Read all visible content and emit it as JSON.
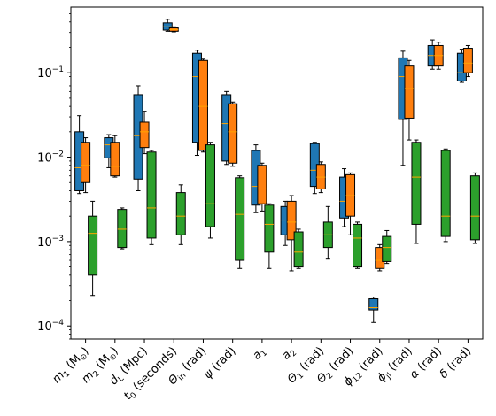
{
  "chart_data": {
    "type": "box",
    "yscale": "log",
    "ylim": [
      7e-05,
      0.6
    ],
    "y_ticks": [
      {
        "value": 0.0001,
        "label": "10^-4"
      },
      {
        "value": 0.001,
        "label": "10^-3"
      },
      {
        "value": 0.01,
        "label": "10^-2"
      },
      {
        "value": 0.1,
        "label": "10^-1"
      }
    ],
    "categories": [
      {
        "label": "m_1 (M_⊙)",
        "base": "m",
        "sub": "1",
        "rest": " (M",
        "tail": ")",
        "sun": true
      },
      {
        "label": "m_2 (M_⊙)",
        "base": "m",
        "sub": "2",
        "rest": " (M",
        "tail": ")",
        "sun": true
      },
      {
        "label": "d_L (Mpc)",
        "base": "d",
        "sub": "L",
        "rest": " (Mpc)"
      },
      {
        "label": "t_0 (seconds)",
        "base": "t",
        "sub": "0",
        "rest": " (seconds)"
      },
      {
        "label": "Θ_jn (rad)",
        "base": "Θ",
        "sub": "jn",
        "rest": " (rad)"
      },
      {
        "label": "ψ (rad)",
        "base": "ψ",
        "sub": "",
        "rest": " (rad)"
      },
      {
        "label": "a_1",
        "base": "a",
        "sub": "1",
        "rest": ""
      },
      {
        "label": "a_2",
        "base": "a",
        "sub": "2",
        "rest": ""
      },
      {
        "label": "Θ_1 (rad)",
        "base": "Θ",
        "sub": "1",
        "rest": " (rad)"
      },
      {
        "label": "Θ_2 (rad)",
        "base": "Θ",
        "sub": "2",
        "rest": " (rad)"
      },
      {
        "label": "ϕ_12 (rad)",
        "base": "ϕ",
        "sub": "12",
        "rest": " (rad)"
      },
      {
        "label": "ϕ_jl (rad)",
        "base": "ϕ",
        "sub": "jl",
        "rest": " (rad)"
      },
      {
        "label": "α (rad)",
        "base": "α",
        "sub": "",
        "rest": " (rad)"
      },
      {
        "label": "δ (rad)",
        "base": "δ",
        "sub": "",
        "rest": " (rad)"
      }
    ],
    "series": [
      {
        "color": "#1f77b4",
        "boxes": [
          {
            "category": 0,
            "whislo": 0.0037,
            "q1": 0.004,
            "med": 0.0075,
            "q3": 0.02,
            "whishi": 0.031
          },
          {
            "category": 1,
            "whislo": 0.0075,
            "q1": 0.0098,
            "med": 0.014,
            "q3": 0.017,
            "whishi": 0.0185
          },
          {
            "category": 2,
            "whislo": 0.004,
            "q1": 0.0055,
            "med": 0.018,
            "q3": 0.055,
            "whishi": 0.07
          },
          {
            "category": 3,
            "whislo": 0.31,
            "q1": 0.32,
            "med": 0.35,
            "q3": 0.39,
            "whishi": 0.43
          },
          {
            "category": 4,
            "whislo": 0.0105,
            "q1": 0.015,
            "med": 0.09,
            "q3": 0.17,
            "whishi": 0.185
          },
          {
            "category": 5,
            "whislo": 0.0082,
            "q1": 0.009,
            "med": 0.025,
            "q3": 0.055,
            "whishi": 0.06
          },
          {
            "category": 6,
            "whislo": 0.0022,
            "q1": 0.0027,
            "med": 0.0045,
            "q3": 0.012,
            "whishi": 0.014
          },
          {
            "category": 7,
            "whislo": 0.0009,
            "q1": 0.0012,
            "med": 0.0018,
            "q3": 0.0026,
            "whishi": 0.003
          },
          {
            "category": 8,
            "whislo": 0.0037,
            "q1": 0.0045,
            "med": 0.007,
            "q3": 0.0145,
            "whishi": 0.015
          },
          {
            "category": 9,
            "whislo": 0.0015,
            "q1": 0.0019,
            "med": 0.003,
            "q3": 0.0058,
            "whishi": 0.0073
          },
          {
            "category": 10,
            "whislo": 0.00011,
            "q1": 0.000155,
            "med": 0.000165,
            "q3": 0.00021,
            "whishi": 0.00022
          },
          {
            "category": 11,
            "whislo": 0.008,
            "q1": 0.028,
            "med": 0.09,
            "q3": 0.15,
            "whishi": 0.18
          },
          {
            "category": 12,
            "whislo": 0.11,
            "q1": 0.12,
            "med": 0.16,
            "q3": 0.21,
            "whishi": 0.245
          },
          {
            "category": 13,
            "whislo": 0.077,
            "q1": 0.08,
            "med": 0.1,
            "q3": 0.17,
            "whishi": 0.19
          }
        ]
      },
      {
        "color": "#ff7f0e",
        "boxes": [
          {
            "category": 0,
            "whislo": 0.0038,
            "q1": 0.005,
            "med": 0.008,
            "q3": 0.015,
            "whishi": 0.017
          },
          {
            "category": 1,
            "whislo": 0.0058,
            "q1": 0.006,
            "med": 0.0078,
            "q3": 0.015,
            "whishi": 0.018
          },
          {
            "category": 2,
            "whislo": 0.011,
            "q1": 0.013,
            "med": 0.02,
            "q3": 0.026,
            "whishi": 0.035
          },
          {
            "category": 3,
            "whislo": 0.305,
            "q1": 0.31,
            "med": 0.325,
            "q3": 0.34,
            "whishi": 0.35
          },
          {
            "category": 4,
            "whislo": 0.0115,
            "q1": 0.012,
            "med": 0.04,
            "q3": 0.14,
            "whishi": 0.145
          },
          {
            "category": 5,
            "whislo": 0.0078,
            "q1": 0.0085,
            "med": 0.02,
            "q3": 0.043,
            "whishi": 0.045
          },
          {
            "category": 6,
            "whislo": 0.0023,
            "q1": 0.0028,
            "med": 0.0042,
            "q3": 0.008,
            "whishi": 0.0085
          },
          {
            "category": 7,
            "whislo": 0.00045,
            "q1": 0.00105,
            "med": 0.0017,
            "q3": 0.003,
            "whishi": 0.0035
          },
          {
            "category": 8,
            "whislo": 0.0038,
            "q1": 0.0042,
            "med": 0.0058,
            "q3": 0.0082,
            "whishi": 0.0088
          },
          {
            "category": 9,
            "whislo": 0.0012,
            "q1": 0.002,
            "med": 0.0035,
            "q3": 0.0062,
            "whishi": 0.0065
          },
          {
            "category": 10,
            "whislo": 0.00045,
            "q1": 0.00048,
            "med": 0.0006,
            "q3": 0.00085,
            "whishi": 0.00092
          },
          {
            "category": 11,
            "whislo": 0.016,
            "q1": 0.029,
            "med": 0.065,
            "q3": 0.12,
            "whishi": 0.14
          },
          {
            "category": 12,
            "whislo": 0.11,
            "q1": 0.12,
            "med": 0.16,
            "q3": 0.21,
            "whishi": 0.23
          },
          {
            "category": 13,
            "whislo": 0.09,
            "q1": 0.1,
            "med": 0.13,
            "q3": 0.195,
            "whishi": 0.21
          }
        ]
      },
      {
        "color": "#2ca02c",
        "boxes": [
          {
            "category": 0,
            "whislo": 0.00023,
            "q1": 0.0004,
            "med": 0.00125,
            "q3": 0.002,
            "whishi": 0.003
          },
          {
            "category": 1,
            "whislo": 0.00082,
            "q1": 0.00085,
            "med": 0.0014,
            "q3": 0.0024,
            "whishi": 0.0025
          },
          {
            "category": 2,
            "whislo": 0.00092,
            "q1": 0.0011,
            "med": 0.0025,
            "q3": 0.0115,
            "whishi": 0.012
          },
          {
            "category": 3,
            "whislo": 0.00092,
            "q1": 0.0012,
            "med": 0.002,
            "q3": 0.0038,
            "whishi": 0.0047
          },
          {
            "category": 4,
            "whislo": 0.0011,
            "q1": 0.0015,
            "med": 0.0028,
            "q3": 0.014,
            "whishi": 0.015
          },
          {
            "category": 5,
            "whislo": 0.00048,
            "q1": 0.0006,
            "med": 0.0021,
            "q3": 0.0057,
            "whishi": 0.006
          },
          {
            "category": 6,
            "whislo": 0.00048,
            "q1": 0.00075,
            "med": 0.0016,
            "q3": 0.0027,
            "whishi": 0.0028
          },
          {
            "category": 7,
            "whislo": 0.00048,
            "q1": 0.0005,
            "med": 0.00075,
            "q3": 0.0013,
            "whishi": 0.0014
          },
          {
            "category": 8,
            "whislo": 0.00062,
            "q1": 0.00085,
            "med": 0.0012,
            "q3": 0.0017,
            "whishi": 0.0026
          },
          {
            "category": 9,
            "whislo": 0.00048,
            "q1": 0.0005,
            "med": 0.0011,
            "q3": 0.0016,
            "whishi": 0.0017
          },
          {
            "category": 10,
            "whislo": 0.00055,
            "q1": 0.00058,
            "med": 0.00085,
            "q3": 0.00115,
            "whishi": 0.00135
          },
          {
            "category": 11,
            "whislo": 0.00095,
            "q1": 0.0016,
            "med": 0.0058,
            "q3": 0.015,
            "whishi": 0.016
          },
          {
            "category": 12,
            "whislo": 0.001,
            "q1": 0.00115,
            "med": 0.002,
            "q3": 0.012,
            "whishi": 0.0125
          },
          {
            "category": 13,
            "whislo": 0.00095,
            "q1": 0.00105,
            "med": 0.002,
            "q3": 0.006,
            "whishi": 0.0065
          }
        ]
      }
    ],
    "median_color": "#ffa500",
    "grid": false,
    "legend": "none"
  }
}
